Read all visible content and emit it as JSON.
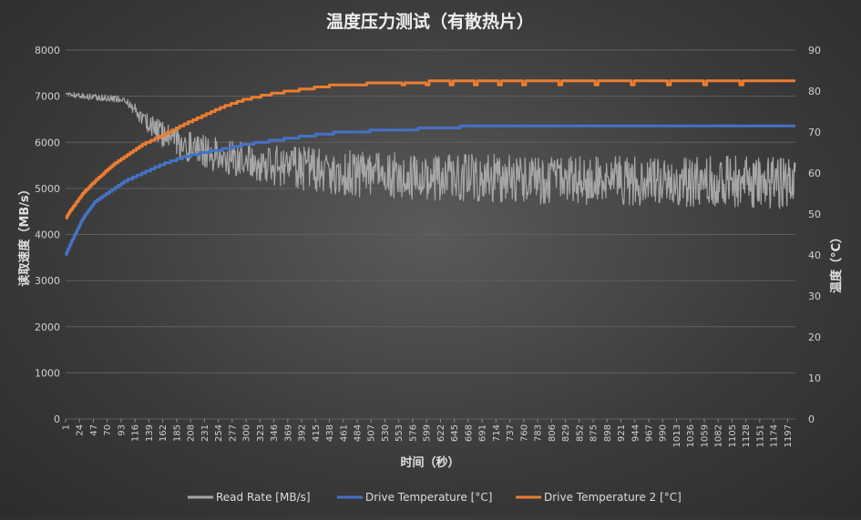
{
  "chart_data": {
    "type": "line",
    "title": "温度压力测试（有散热片）",
    "xlabel": "时间（秒）",
    "ylabel_left": "读取速度（MB/s）",
    "ylabel_right": "温度（°C）",
    "ylim_left": [
      0,
      8000
    ],
    "yticks_left": [
      "0",
      "1000",
      "2000",
      "3000",
      "4000",
      "5000",
      "6000",
      "7000",
      "8000"
    ],
    "ylim_right": [
      0,
      90
    ],
    "yticks_right": [
      "0",
      "10",
      "20",
      "30",
      "40",
      "50",
      "60",
      "70",
      "80",
      "90"
    ],
    "xlim": [
      1,
      1210
    ],
    "x_tick_labels": [
      "1",
      "24",
      "47",
      "70",
      "93",
      "116",
      "139",
      "162",
      "185",
      "208",
      "231",
      "254",
      "277",
      "300",
      "323",
      "346",
      "369",
      "392",
      "415",
      "438",
      "461",
      "484",
      "507",
      "530",
      "553",
      "576",
      "599",
      "622",
      "645",
      "668",
      "691",
      "714",
      "737",
      "760",
      "783",
      "806",
      "829",
      "852",
      "875",
      "898",
      "921",
      "944",
      "967",
      "990",
      "1013",
      "1036",
      "1059",
      "1082",
      "1105",
      "1128",
      "1151",
      "1174",
      "1197"
    ],
    "grid": true,
    "legend_position": "bottom",
    "series": [
      {
        "name": "Read Rate [MB/s]",
        "axis": "left",
        "color": "#a6a6a6",
        "x": [
          1,
          50,
          100,
          130,
          160,
          200,
          250,
          300,
          350,
          400,
          450,
          500,
          600,
          700,
          800,
          900,
          1000,
          1100,
          1210
        ],
        "values": [
          7050,
          6950,
          6900,
          6500,
          6200,
          5950,
          5700,
          5550,
          5450,
          5400,
          5350,
          5300,
          5250,
          5200,
          5200,
          5150,
          5150,
          5150,
          5150
        ],
        "noise_band_low": [
          7000,
          6900,
          6850,
          6300,
          5900,
          5600,
          5350,
          5200,
          5050,
          4950,
          4850,
          4800,
          4750,
          4700,
          4650,
          4650,
          4600,
          4600,
          4550
        ],
        "noise_band_high": [
          7100,
          7050,
          7000,
          6700,
          6450,
          6250,
          6100,
          6000,
          5950,
          5900,
          5850,
          5800,
          5750,
          5750,
          5700,
          5700,
          5700,
          5700,
          5700
        ]
      },
      {
        "name": "Drive Temperature [°C]",
        "axis": "right",
        "color": "#4472c4",
        "x": [
          1,
          10,
          30,
          50,
          80,
          100,
          130,
          160,
          200,
          230,
          270,
          300,
          350,
          400,
          460,
          550,
          690,
          800,
          1000,
          1210
        ],
        "values": [
          40,
          43,
          49,
          53,
          56,
          58,
          60,
          62,
          64,
          65,
          66,
          67,
          68,
          69,
          70,
          70.5,
          71.5,
          71.5,
          71.5,
          71.5
        ]
      },
      {
        "name": "Drive Temperature 2 [°C]",
        "axis": "right",
        "color": "#ed7d31",
        "x": [
          1,
          10,
          30,
          50,
          80,
          100,
          130,
          160,
          200,
          230,
          260,
          300,
          350,
          400,
          450,
          550,
          650,
          800,
          1000,
          1210
        ],
        "values": [
          49,
          51,
          55,
          58,
          62,
          64,
          67,
          69,
          72,
          74,
          76,
          78,
          79.5,
          80.5,
          81.5,
          82,
          82.5,
          82.5,
          82.5,
          82.5
        ],
        "dips_x": [
          560,
          600,
          640,
          680,
          720,
          760,
          820,
          880,
          940,
          1000,
          1060,
          1120
        ],
        "dips_values": [
          81.5,
          81.5,
          81.5,
          81.5,
          81.5,
          81.5,
          81.5,
          81.5,
          81.5,
          81.5,
          81.5,
          81.5
        ]
      }
    ]
  }
}
